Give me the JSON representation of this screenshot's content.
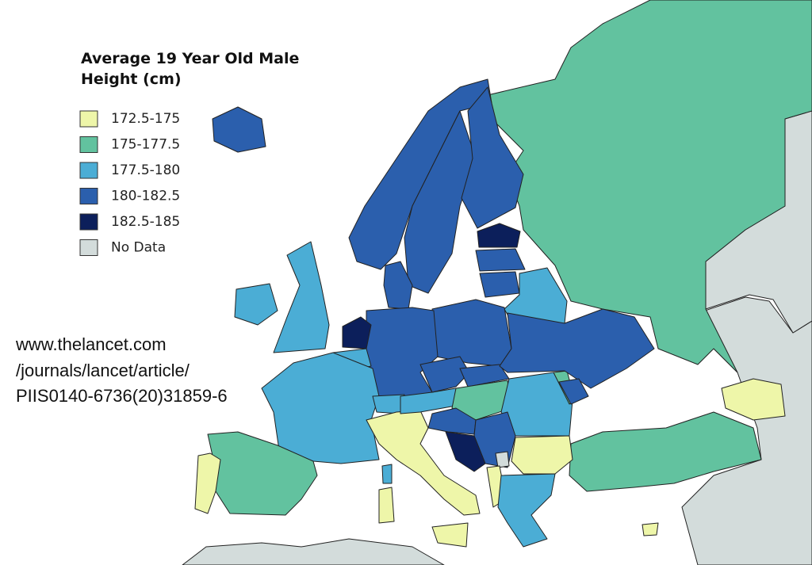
{
  "header": {
    "title_lines": [
      "Average 19 Year Old Male",
      "Height (cm)"
    ]
  },
  "legend": {
    "items": [
      {
        "label": "172.5-175",
        "color": "#eef6a9"
      },
      {
        "label": "175-177.5",
        "color": "#62c29f"
      },
      {
        "label": "177.5-180",
        "color": "#4badd5"
      },
      {
        "label": "180-182.5",
        "color": "#2b5fad"
      },
      {
        "label": "182.5-185",
        "color": "#0c1f5b"
      },
      {
        "label": "No Data",
        "color": "#d3dcdb"
      }
    ]
  },
  "source": {
    "lines": [
      "www.thelancet.com",
      "/journals/lancet/article/",
      "PIIS0140-6736(20)31859-6"
    ]
  }
}
